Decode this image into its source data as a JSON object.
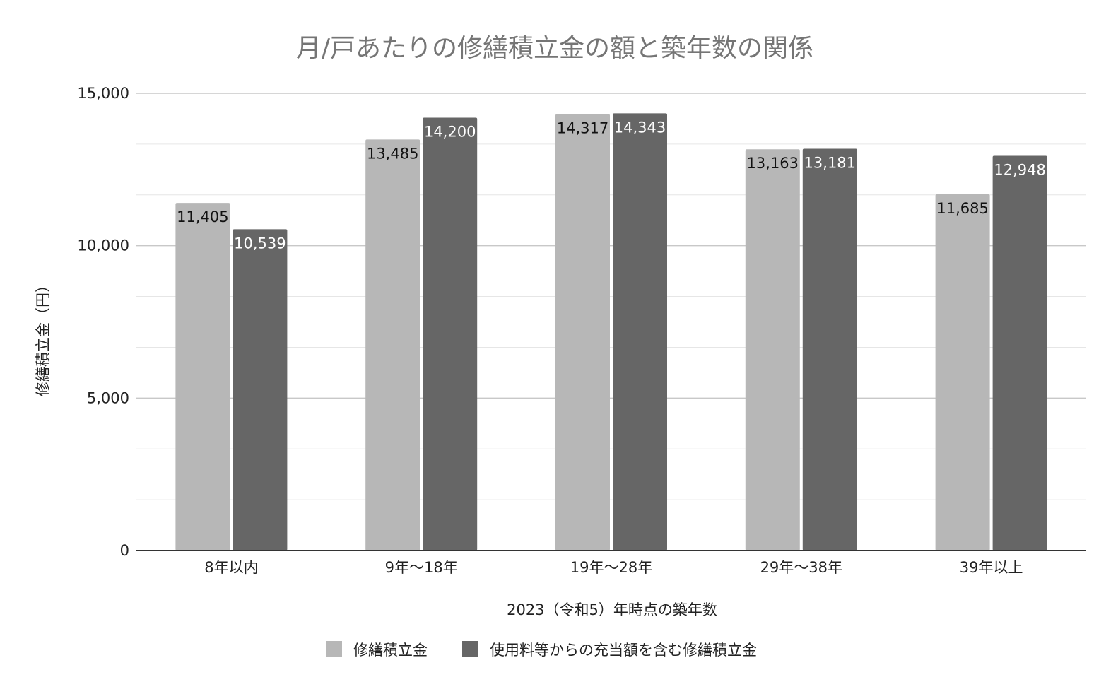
{
  "chart_data": {
    "type": "bar",
    "title": "月/戸あたりの修繕積立金の額と築年数の関係",
    "xlabel": "2023（令和5）年時点の築年数",
    "ylabel": "修繕積立金（円）",
    "categories": [
      "8年以内",
      "9年〜18年",
      "19年〜28年",
      "29年〜38年",
      "39年以上"
    ],
    "series": [
      {
        "name": "修繕積立金",
        "color": "#b7b7b7",
        "label_color": "#111111",
        "values": [
          11405,
          13485,
          14317,
          13163,
          11685
        ]
      },
      {
        "name": "使用料等からの充当額を含む修繕積立金",
        "color": "#666666",
        "label_color": "#ffffff",
        "values": [
          10539,
          14200,
          14343,
          13181,
          12948
        ]
      }
    ],
    "ylim": [
      0,
      15000
    ],
    "yticks": [
      0,
      5000,
      10000,
      15000
    ],
    "ytick_labels": [
      "0",
      "5,000",
      "10,000",
      "15,000"
    ],
    "minor_grid_step": 1666.67,
    "grid": true,
    "legend_position": "bottom"
  }
}
